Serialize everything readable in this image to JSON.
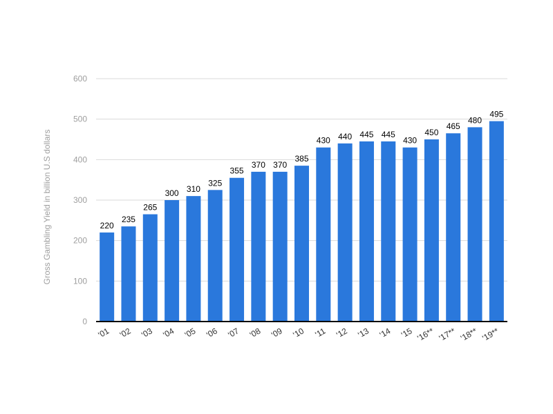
{
  "chart_data": {
    "type": "bar",
    "categories": [
      "'01",
      "'02",
      "'03",
      "'04",
      "'05",
      "'06",
      "'07",
      "'08",
      "'09",
      "'10",
      "'11",
      "'12",
      "'13",
      "'14",
      "'15",
      "'16**",
      "'17**",
      "'18**",
      "'19**"
    ],
    "values": [
      220,
      235,
      265,
      300,
      310,
      325,
      355,
      370,
      370,
      385,
      430,
      440,
      445,
      445,
      430,
      450,
      465,
      480,
      495
    ],
    "title": "",
    "xlabel": "",
    "ylabel": "Gross Gambling Yield in billion U.S dollars",
    "ylim": [
      0,
      600
    ],
    "yticks": [
      0,
      100,
      200,
      300,
      400,
      500,
      600
    ],
    "grid": true,
    "data_labels": true,
    "colors": {
      "bar": "#2a78dc",
      "grid": "#d9d9d9",
      "axis": "#000000",
      "tick_text": "#9e9e9e"
    }
  }
}
